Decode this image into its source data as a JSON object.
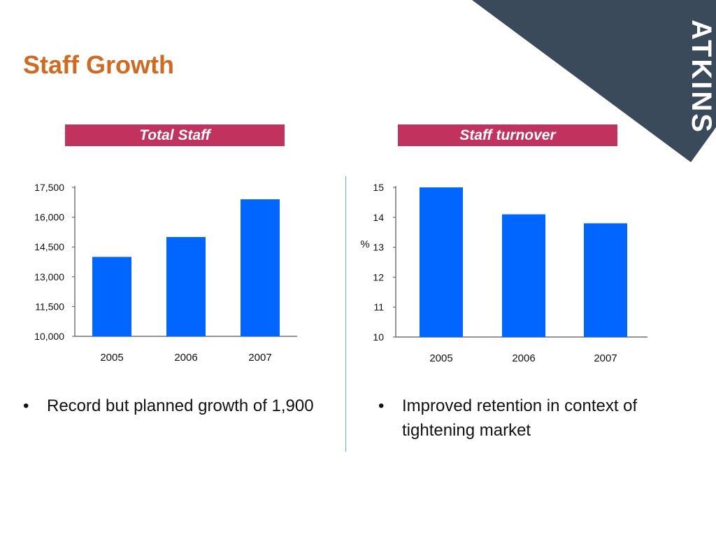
{
  "slide": {
    "title": "Staff Growth",
    "brand": "ATKINS",
    "colors": {
      "title": "#d2691e",
      "banner": "#c1325f",
      "bar": "#0066ff",
      "corner": "#3a4a5a"
    }
  },
  "chart_data": [
    {
      "type": "bar",
      "title": "Total Staff",
      "categories": [
        "2005",
        "2006",
        "2007"
      ],
      "values": [
        14000,
        15000,
        16900
      ],
      "ylim": [
        10000,
        17500
      ],
      "yticks": [
        "10,000",
        "11,500",
        "13,000",
        "14,500",
        "16,000",
        "17,500"
      ],
      "xlabel": "",
      "ylabel": "",
      "grid": false
    },
    {
      "type": "bar",
      "title": "Staff turnover",
      "categories": [
        "2005",
        "2006",
        "2007"
      ],
      "values": [
        15,
        14.1,
        13.8
      ],
      "ylim": [
        10,
        15
      ],
      "yticks": [
        "10",
        "11",
        "12",
        "13",
        "14",
        "15"
      ],
      "xlabel": "",
      "ylabel": "%",
      "grid": false
    }
  ],
  "bullets": {
    "left": {
      "marker": "•",
      "text": "Record but planned growth of 1,900"
    },
    "right": {
      "marker": "•",
      "text": "Improved retention in context of tightening market"
    }
  }
}
